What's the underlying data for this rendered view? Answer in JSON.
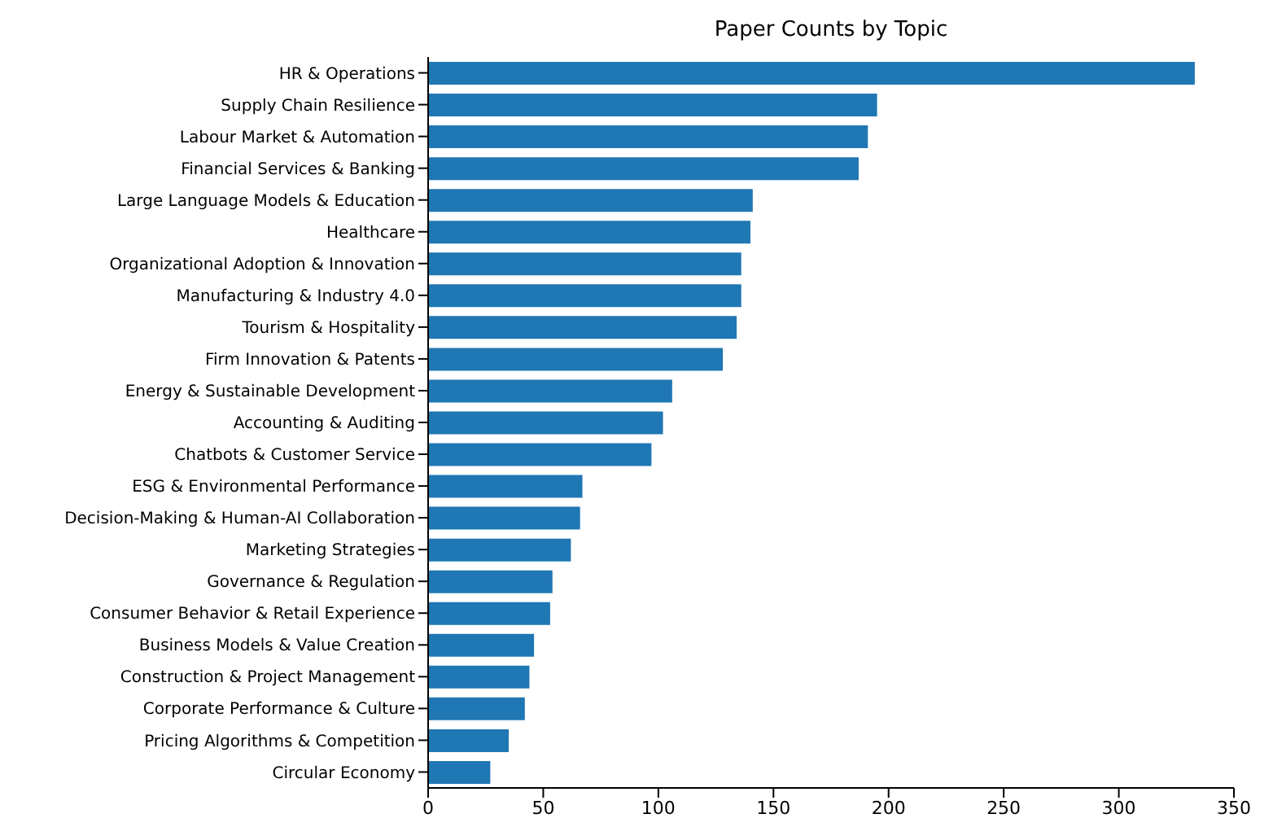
{
  "chart_data": {
    "type": "bar",
    "orientation": "horizontal",
    "title": "Paper Counts by Topic",
    "categories": [
      "HR & Operations",
      "Supply Chain Resilience",
      "Labour Market & Automation",
      "Financial Services & Banking",
      "Large Language Models & Education",
      "Healthcare",
      "Organizational Adoption & Innovation",
      "Manufacturing & Industry 4.0",
      "Tourism & Hospitality",
      "Firm Innovation & Patents",
      "Energy & Sustainable Development",
      "Accounting & Auditing",
      "Chatbots & Customer Service",
      "ESG & Environmental Performance",
      "Decision-Making & Human-AI Collaboration",
      "Marketing Strategies",
      "Governance & Regulation",
      "Consumer Behavior & Retail Experience",
      "Business Models & Value Creation",
      "Construction & Project Management",
      "Corporate Performance & Culture",
      "Pricing Algorithms & Competition",
      "Circular Economy"
    ],
    "values": [
      333,
      195,
      191,
      187,
      141,
      140,
      136,
      136,
      134,
      128,
      106,
      102,
      97,
      67,
      66,
      62,
      54,
      53,
      46,
      44,
      42,
      35,
      27
    ],
    "color": "#1f77b4",
    "xlim": [
      0,
      350
    ],
    "xticks": [
      0,
      50,
      100,
      150,
      200,
      250,
      300,
      350
    ],
    "grid": false,
    "legend": false
  }
}
